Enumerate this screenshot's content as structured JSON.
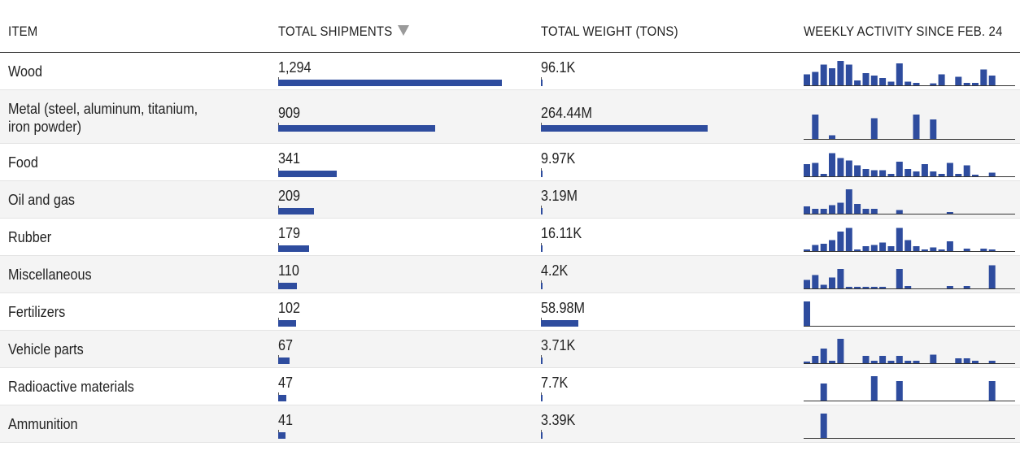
{
  "header": {
    "item": "ITEM",
    "shipments": "TOTAL SHIPMENTS",
    "weight": "TOTAL WEIGHT (TONS)",
    "weekly": "WEEKLY ACTIVITY SINCE FEB. 24",
    "sort_icon": "sort-descending-icon"
  },
  "colors": {
    "bar": "#2e4c9e",
    "baseline": "#333333",
    "header_rule": "#333333",
    "alt_row": "#f4f4f4"
  },
  "chart_data": {
    "type": "table",
    "columns": [
      "ITEM",
      "TOTAL SHIPMENTS",
      "TOTAL WEIGHT (TONS)",
      "WEEKLY ACTIVITY SINCE FEB. 24"
    ],
    "sort": {
      "column": "TOTAL SHIPMENTS",
      "order": "descending"
    },
    "shipments_max": 1294,
    "weight_max_tons": 355000000,
    "weekly_max": 1.0,
    "rows": [
      {
        "item": "Wood",
        "shipments": 1294,
        "shipments_label": "1,294",
        "weight_tons": 96100,
        "weight_label": "96.1K",
        "weekly": [
          0.45,
          0.55,
          0.85,
          0.7,
          1.0,
          0.85,
          0.2,
          0.5,
          0.4,
          0.3,
          0.15,
          0.9,
          0.15,
          0.1,
          0,
          0.08,
          0.45,
          0,
          0.35,
          0.1,
          0.1,
          0.65,
          0.4
        ]
      },
      {
        "item": "Metal (steel, aluminum, titanium, iron powder)",
        "shipments": 909,
        "shipments_label": "909",
        "weight_tons": 264440000,
        "weight_label": "264.44M",
        "weekly": [
          0,
          1.0,
          0,
          0.15,
          0,
          0,
          0,
          0,
          0.85,
          0,
          0,
          0,
          0,
          1.0,
          0,
          0.8,
          0,
          0,
          0,
          0,
          0,
          0,
          0
        ]
      },
      {
        "item": "Food",
        "shipments": 341,
        "shipments_label": "341",
        "weight_tons": 9970,
        "weight_label": "9.97K",
        "weekly": [
          0.5,
          0.55,
          0.1,
          0.95,
          0.75,
          0.65,
          0.45,
          0.3,
          0.25,
          0.25,
          0.1,
          0.6,
          0.3,
          0.2,
          0.5,
          0.2,
          0.1,
          0.55,
          0.1,
          0.45,
          0.05,
          0,
          0.15
        ]
      },
      {
        "item": "Oil and gas",
        "shipments": 209,
        "shipments_label": "209",
        "weight_tons": 3190000,
        "weight_label": "3.19M",
        "weekly": [
          0.3,
          0.2,
          0.2,
          0.35,
          0.45,
          1.0,
          0.4,
          0.2,
          0.2,
          0,
          0,
          0.15,
          0,
          0,
          0,
          0,
          0,
          0.05,
          0,
          0,
          0,
          0,
          0
        ]
      },
      {
        "item": "Rubber",
        "shipments": 179,
        "shipments_label": "179",
        "weight_tons": 16110,
        "weight_label": "16.11K",
        "weekly": [
          0.05,
          0.25,
          0.3,
          0.45,
          0.8,
          0.95,
          0.05,
          0.2,
          0.25,
          0.35,
          0.2,
          0.95,
          0.45,
          0.2,
          0.05,
          0.15,
          0.05,
          0.4,
          0,
          0.1,
          0,
          0.1,
          0.05
        ]
      },
      {
        "item": "Miscellaneous",
        "shipments": 110,
        "shipments_label": "110",
        "weight_tons": 4200,
        "weight_label": "4.2K",
        "weekly": [
          0.35,
          0.55,
          0.15,
          0.45,
          0.8,
          0.05,
          0.05,
          0.05,
          0.05,
          0.05,
          0,
          0.8,
          0.1,
          0,
          0,
          0,
          0,
          0.1,
          0,
          0.1,
          0,
          0,
          0.95
        ]
      },
      {
        "item": "Fertilizers",
        "shipments": 102,
        "shipments_label": "102",
        "weight_tons": 58980000,
        "weight_label": "58.98M",
        "weekly": [
          1.0,
          0,
          0,
          0,
          0,
          0,
          0,
          0,
          0,
          0,
          0,
          0,
          0,
          0,
          0,
          0,
          0,
          0,
          0,
          0,
          0,
          0,
          0
        ]
      },
      {
        "item": "Vehicle parts",
        "shipments": 67,
        "shipments_label": "67",
        "weight_tons": 3710,
        "weight_label": "3.71K",
        "weekly": [
          0.05,
          0.3,
          0.6,
          0.1,
          1.0,
          0,
          0,
          0.3,
          0.1,
          0.3,
          0.1,
          0.3,
          0.1,
          0.1,
          0,
          0.35,
          0,
          0,
          0.2,
          0.2,
          0.1,
          0,
          0.1
        ]
      },
      {
        "item": "Radioactive materials",
        "shipments": 47,
        "shipments_label": "47",
        "weight_tons": 7700,
        "weight_label": "7.7K",
        "weekly": [
          0,
          0,
          0.7,
          0,
          0,
          0,
          0,
          0,
          1.0,
          0,
          0,
          0.8,
          0,
          0,
          0,
          0,
          0,
          0,
          0,
          0,
          0,
          0,
          0.8
        ]
      },
      {
        "item": "Ammunition",
        "shipments": 41,
        "shipments_label": "41",
        "weight_tons": 3390,
        "weight_label": "3.39K",
        "weekly": [
          0,
          0,
          1.0,
          0,
          0,
          0,
          0,
          0,
          0,
          0,
          0,
          0,
          0,
          0,
          0,
          0,
          0,
          0,
          0,
          0,
          0,
          0,
          0
        ]
      }
    ]
  }
}
